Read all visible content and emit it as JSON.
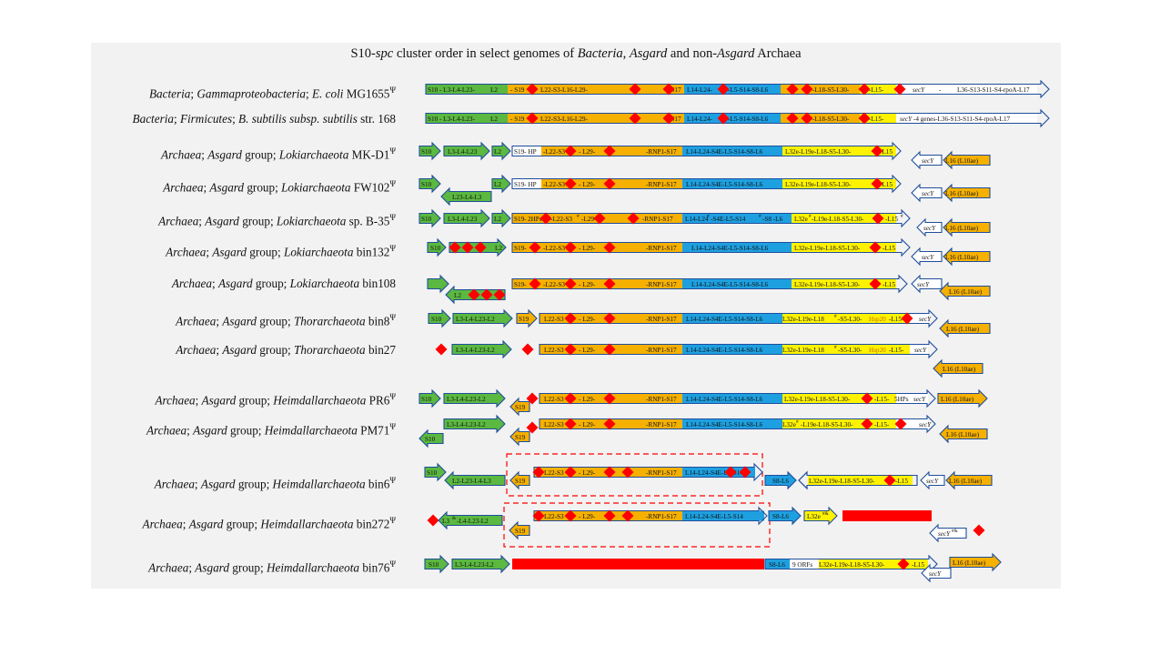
{
  "title": {
    "prefix": "S10-",
    "spc": "spc",
    "mid1": " cluster order in select genomes of ",
    "bacteria": "Bacteria",
    "comma": ", ",
    "asgard": "Asgard",
    "mid2": " and non-",
    "asgard2": "Asgard",
    "archaea": " Archaea"
  },
  "rows": [
    {
      "label": [
        [
          "Bacteria",
          "i"
        ],
        [
          "; ",
          ""
        ],
        [
          "Gammaproteobacteria",
          "i"
        ],
        [
          "; ",
          ""
        ],
        [
          "E. coli",
          "i"
        ],
        [
          " MG1655",
          ""
        ],
        [
          "Ψ",
          "sup"
        ]
      ]
    },
    {
      "label": [
        [
          "Bacteria",
          "i"
        ],
        [
          "; ",
          ""
        ],
        [
          "Firmicutes",
          "i"
        ],
        [
          "; ",
          ""
        ],
        [
          "B. subtilis subsp. subtilis",
          "i"
        ],
        [
          " str. 168",
          ""
        ]
      ]
    },
    {
      "label": [
        [
          "Archaea",
          "i"
        ],
        [
          "; ",
          ""
        ],
        [
          "Asgard",
          "i"
        ],
        [
          " group; ",
          ""
        ],
        [
          "Lokiarchaeota",
          "i"
        ],
        [
          " MK-D1",
          ""
        ],
        [
          "Ψ",
          "sup"
        ]
      ]
    },
    {
      "label": [
        [
          "Archaea",
          "i"
        ],
        [
          "; ",
          ""
        ],
        [
          "Asgard",
          "i"
        ],
        [
          " group; ",
          ""
        ],
        [
          "Lokiarchaeota",
          "i"
        ],
        [
          " FW102",
          ""
        ],
        [
          "Ψ",
          "sup"
        ]
      ]
    },
    {
      "label": [
        [
          "Archaea",
          "i"
        ],
        [
          "; ",
          ""
        ],
        [
          "Asgard",
          "i"
        ],
        [
          " group; ",
          ""
        ],
        [
          "Lokiarchaeota",
          "i"
        ],
        [
          " sp. B-35",
          ""
        ],
        [
          "Ψ",
          "sup"
        ]
      ]
    },
    {
      "label": [
        [
          "Archaea",
          "i"
        ],
        [
          "; ",
          ""
        ],
        [
          "Asgard",
          "i"
        ],
        [
          " group; ",
          ""
        ],
        [
          "Lokiarchaeota",
          "i"
        ],
        [
          " bin132",
          ""
        ],
        [
          "Ψ",
          "sup"
        ]
      ]
    },
    {
      "label": [
        [
          "Archaea",
          "i"
        ],
        [
          "; ",
          ""
        ],
        [
          "Asgard",
          "i"
        ],
        [
          " group; ",
          ""
        ],
        [
          "Lokiarchaeota",
          "i"
        ],
        [
          " bin108",
          ""
        ]
      ]
    },
    {
      "label": [
        [
          "Archaea",
          "i"
        ],
        [
          "; ",
          ""
        ],
        [
          "Asgard",
          "i"
        ],
        [
          " group; ",
          ""
        ],
        [
          "Thorarchaeota",
          "i"
        ],
        [
          " bin8",
          ""
        ],
        [
          "Ψ",
          "sup"
        ]
      ]
    },
    {
      "label": [
        [
          "Archaea",
          "i"
        ],
        [
          "; ",
          ""
        ],
        [
          "Asgard",
          "i"
        ],
        [
          " group; ",
          ""
        ],
        [
          "Thorarchaeota",
          "i"
        ],
        [
          " bin27",
          ""
        ]
      ]
    },
    {
      "label": [
        [
          "Archaea",
          "i"
        ],
        [
          "; ",
          ""
        ],
        [
          "Asgard",
          "i"
        ],
        [
          " group; ",
          ""
        ],
        [
          "Heimdallarchaeota",
          "i"
        ],
        [
          " PR6",
          ""
        ],
        [
          "Ψ",
          "sup"
        ]
      ]
    },
    {
      "label": [
        [
          "Archaea",
          "i"
        ],
        [
          "; ",
          ""
        ],
        [
          "Asgard",
          "i"
        ],
        [
          " group; ",
          ""
        ],
        [
          "Heimdallarchaeota",
          "i"
        ],
        [
          " PM71",
          ""
        ],
        [
          "Ψ",
          "sup"
        ]
      ]
    },
    {
      "label": [
        [
          "Archaea",
          "i"
        ],
        [
          "; ",
          ""
        ],
        [
          "Asgard",
          "i"
        ],
        [
          " group; ",
          ""
        ],
        [
          "Heimdallarchaeota",
          "i"
        ],
        [
          " bin6",
          ""
        ],
        [
          "Ψ",
          "sup"
        ]
      ]
    },
    {
      "label": [
        [
          "Archaea",
          "i"
        ],
        [
          "; ",
          ""
        ],
        [
          "Asgard",
          "i"
        ],
        [
          " group; ",
          ""
        ],
        [
          "Heimdallarchaeota",
          "i"
        ],
        [
          " bin272",
          ""
        ],
        [
          "Ψ",
          "sup"
        ]
      ]
    },
    {
      "label": [
        [
          "Archaea",
          "i"
        ],
        [
          "; ",
          ""
        ],
        [
          "Asgard",
          "i"
        ],
        [
          " group; ",
          ""
        ],
        [
          "Heimdallarchaeota",
          "i"
        ],
        [
          " bin76",
          ""
        ],
        [
          "Ψ",
          "sup"
        ]
      ]
    }
  ],
  "colors": {
    "green": "#5bb840",
    "orange": "#f5b000",
    "blue": "#1ea0e0",
    "yellow": "#fff200",
    "white": "#ffffff",
    "red": "#ff0000",
    "outline": "#1f4e9c"
  },
  "segments": {
    "r0": [
      "S10 - L3-L4-L23-",
      "L2",
      "- S19",
      "L22-S3-L16-L29-",
      "-S17",
      "L14-L24-",
      "-L5-S14-S8-L6",
      "-L18-S5-L30-",
      "-L15-",
      "secY",
      "-",
      "L36-S13-S11-S4-rpoA-L17"
    ],
    "r1": [
      "S10 - L3-L4-L23-",
      "L2",
      "- S19",
      "L22-S3-L16-L29-",
      "-S17",
      "L14-L24-",
      "-L5-S14-S8-L6",
      "-L18-S5-L30-",
      "-L15-",
      "secY",
      " -4 genes-L36-S13-S11-S4-rpoA-L17"
    ],
    "r2": [
      "S10",
      "L3-L4-L23",
      "L2",
      "S19- HP",
      "-L22-S3",
      "- L29-",
      "-RNP1-S17",
      "L14-L24-S4E-L5-S14-S8-L6",
      "L32e-L19e-L18-S5-L30-",
      "-L15",
      "secY",
      "L16 (L10ae)"
    ],
    "r3": [
      "S10",
      "L23-L4-L3",
      "L2",
      "S19- HP",
      "-L22-S3",
      "- L29-",
      "-RNP1-S17",
      "L14-L24-S4E-L5-S14-S8-L6",
      "L32e-L19e-L18-S5-L30-",
      "-L15",
      "secY",
      "L16 (L10ae)"
    ],
    "r4": [
      "S10",
      "L3-L4-L23",
      "L2",
      "S19-",
      "2HPs",
      "-L22-S3",
      "#",
      "-L29-",
      "-RNP1-S17",
      "L14-L24",
      "#",
      "-S4E-L5-S14",
      "#",
      "-S8 -L6",
      "L32e",
      "#",
      "-L19e-L18-S5-L30-",
      "-L15",
      "#",
      "secY",
      "L16 (L10ae)"
    ],
    "r5": [
      "S10",
      "L2",
      "S19-",
      "-L22-S3",
      "- L29-",
      "-RNP1-S17",
      "L14-L24-S4E-L5-S14-S8-L6",
      "L32e-L19e-L18-S5-L30-",
      "-L15",
      "secY",
      "L16 (L10ae)"
    ],
    "r6": [
      "L2",
      "S19-",
      "-L22-S3",
      "- L29-",
      "-RNP1-S17",
      "L14-L24-S4E-L5-S14-S8-L6",
      "L32e-L19e-L18-S5-L30-",
      "-L15",
      "secY",
      "L16 (L10ae)"
    ],
    "r7": [
      "S10",
      "L3-L4-L23-L2",
      "S19",
      "L22-S3",
      "- L29-",
      "-RNP1-S17",
      "L14-L24-S4E-L5-S14-S8-L6",
      "L32e-L19e-L18",
      "#",
      "-S5-L30-",
      "Hsp20",
      "-L15-",
      "secY",
      "L16 (L10ae)"
    ],
    "r8": [
      "L3-L4-L23-L2",
      "L22-S3",
      "- L29-",
      "-RNP1-S17",
      "L14-L24-S4E-L5-S14-S8-L6",
      "L32e-L19e-L18",
      "#",
      "-S5-L30-",
      "Hsp20",
      "-L15-",
      "secY",
      "L16 (L10ae)"
    ],
    "r9": [
      "S10",
      "L3-L4-L23-L2",
      "S19",
      "L22-S3",
      "- L29-",
      "-RNP1-S17",
      "L14-L24-S4E-L5-S14-S8-L6",
      "L32e-L19e-L18-S5-L30-",
      "-L15-",
      "5HPs",
      "secY",
      "L16 (L10ae)"
    ],
    "r10": [
      "L3-L4-L23-L2",
      "S10",
      "S19",
      "L22-S3",
      "- L29-",
      "-RNP1-S17",
      "L14-L24-S4E-L5-S14-S8-L6",
      "L32e",
      "#",
      "-L19e-L18-S5-L30-",
      "-L15-",
      "secY",
      "L16 (L10ae)"
    ],
    "r11": [
      "S10",
      "L2-L23-L4-L3",
      "S19",
      "L22-S3",
      "- L29-",
      "-RNP1-S17",
      "L14-L24-S4E-L5-S14",
      "S8-L6",
      "L32e-L19e-L18-S5-L30-",
      "-L15",
      "secY",
      "L16 (L10ae)"
    ],
    "r12": [
      "L3",
      "&",
      "-L4-L23-L2",
      "S19",
      "L22-S3",
      "- L29-",
      "-RNP1-S17",
      "L14-L24-S4E-L5-S14",
      "S8-L6",
      "L32e",
      "#&",
      "secY",
      "#&"
    ],
    "r13": [
      "S10",
      "L3-L4-L23-L2",
      "S8-L6",
      "9 ORFs",
      "L32e-L19e-L18-S5-L30-",
      "-L15",
      "secY",
      "L16 (L10ae)"
    ]
  }
}
